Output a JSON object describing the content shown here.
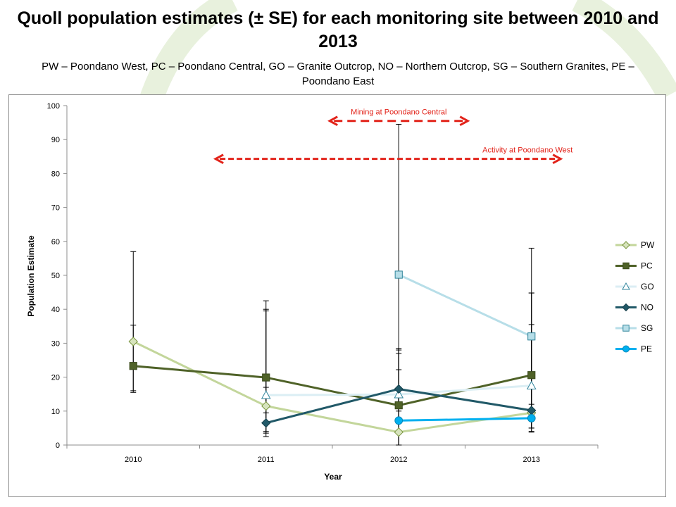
{
  "title": "Quoll population estimates (± SE) for each monitoring site between 2010 and 2013",
  "subtitle": "PW – Poondano West, PC – Poondano Central, GO – Granite Outcrop, NO – Northern Outcrop, SG – Southern Granites, PE – Poondano East",
  "colors": {
    "background_arc": "#e8f1dd",
    "annotation": "#e2231a",
    "axis": "#8c8c8c",
    "error_bar": "#000000"
  },
  "chart_data": {
    "type": "line",
    "xlabel": "Year",
    "ylabel": "Population Estimate",
    "categories": [
      "2010",
      "2011",
      "2012",
      "2013"
    ],
    "ylim": [
      0,
      100
    ],
    "yticks": [
      0,
      10,
      20,
      30,
      40,
      50,
      60,
      70,
      80,
      90,
      100
    ],
    "grid": false,
    "legend_position": "right",
    "series": [
      {
        "name": "PW",
        "color": "#c3d69b",
        "marker": "diamond",
        "marker_fill": "#d7e4bd",
        "marker_stroke": "#77933c",
        "values": [
          30.5,
          11.5,
          3.8,
          9.5
        ],
        "error_low": [
          15.5,
          3.5,
          0,
          4
        ],
        "error_high": [
          57,
          39.5,
          27,
          35.5
        ]
      },
      {
        "name": "PC",
        "color": "#4f6228",
        "marker": "square",
        "marker_fill": "#4f6228",
        "marker_stroke": "#3a4a1c",
        "values": [
          23.3,
          19.9,
          11.7,
          20.6
        ],
        "error_low": [
          16,
          4,
          0,
          10
        ],
        "error_high": [
          35.3,
          42.5,
          28.5,
          58
        ]
      },
      {
        "name": "GO",
        "color": "#dbeef4",
        "marker": "triangle",
        "marker_fill": "#ffffff",
        "marker_stroke": "#31859c",
        "values": [
          null,
          14.7,
          14.9,
          17.5
        ],
        "error_low": [
          null,
          9.5,
          0,
          8
        ],
        "error_high": [
          null,
          40,
          28,
          31
        ]
      },
      {
        "name": "NO",
        "color": "#215968",
        "marker": "diamond",
        "marker_fill": "#215968",
        "marker_stroke": "#17404b",
        "values": [
          null,
          6.5,
          16.5,
          10.2
        ],
        "error_low": [
          null,
          2.5,
          10,
          5
        ],
        "error_high": [
          null,
          17,
          22.2,
          44.8
        ]
      },
      {
        "name": "SG",
        "color": "#b7dee8",
        "marker": "square",
        "marker_fill": "#b7dee8",
        "marker_stroke": "#31859c",
        "values": [
          null,
          null,
          50.2,
          32
        ],
        "error_low": [
          null,
          null,
          7,
          5
        ],
        "error_high": [
          null,
          null,
          94.5,
          44.8
        ]
      },
      {
        "name": "PE",
        "color": "#00b0f0",
        "marker": "circle",
        "marker_fill": "#00b0f0",
        "marker_stroke": "#0089bb",
        "values": [
          null,
          null,
          7.2,
          7.9
        ],
        "error_low": [
          null,
          null,
          7.2,
          3.8
        ],
        "error_high": [
          null,
          null,
          7.2,
          12
        ]
      }
    ],
    "annotations": [
      {
        "text": "Mining at Poondano Central",
        "x_start": 2011.48,
        "x_end": 2012.52,
        "y": 95.5
      },
      {
        "text": "Activity at Poondano West",
        "x_start": 2010.62,
        "x_end": 2013.22,
        "y": 84.3
      }
    ]
  }
}
